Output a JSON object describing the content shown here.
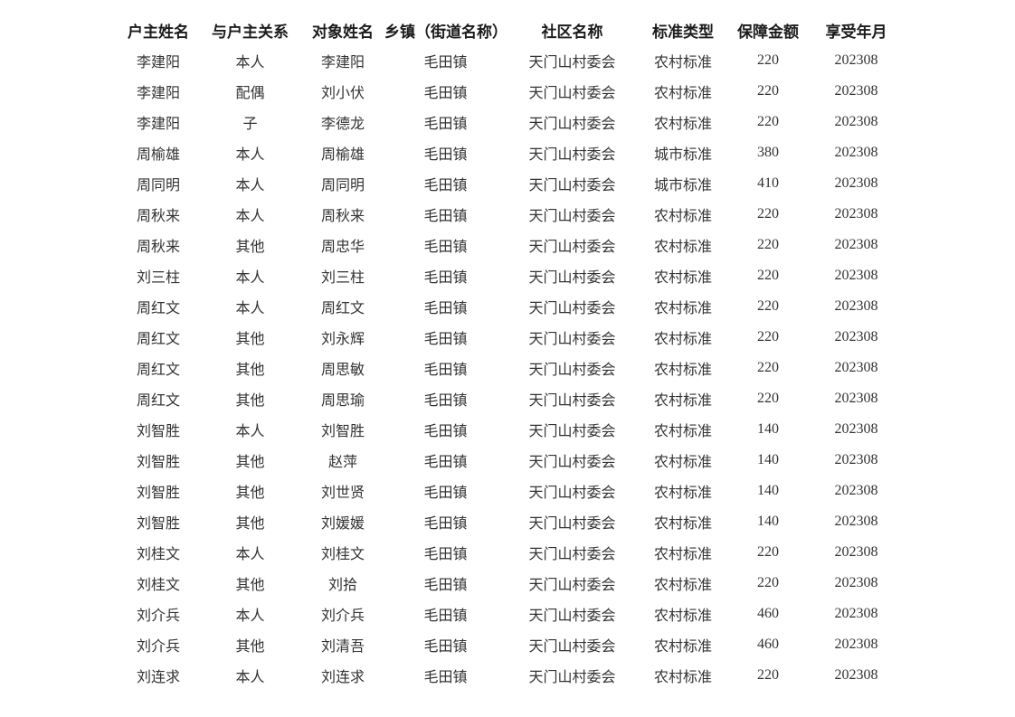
{
  "page": {
    "background_color": "#ffffff",
    "header_text_color": "#1c1c1c",
    "body_text_color": "#333333"
  },
  "table": {
    "headers": [
      "户主姓名",
      "与户主关系",
      "对象姓名",
      "乡镇（街道名称）",
      "社区名称",
      "标准类型",
      "保障金额",
      "享受年月"
    ],
    "rows": [
      [
        "李建阳",
        "本人",
        "李建阳",
        "毛田镇",
        "天门山村委会",
        "农村标准",
        "220",
        "202308"
      ],
      [
        "李建阳",
        "配偶",
        "刘小伏",
        "毛田镇",
        "天门山村委会",
        "农村标准",
        "220",
        "202308"
      ],
      [
        "李建阳",
        "子",
        "李德龙",
        "毛田镇",
        "天门山村委会",
        "农村标准",
        "220",
        "202308"
      ],
      [
        "周榆雄",
        "本人",
        "周榆雄",
        "毛田镇",
        "天门山村委会",
        "城市标准",
        "380",
        "202308"
      ],
      [
        "周同明",
        "本人",
        "周同明",
        "毛田镇",
        "天门山村委会",
        "城市标准",
        "410",
        "202308"
      ],
      [
        "周秋来",
        "本人",
        "周秋来",
        "毛田镇",
        "天门山村委会",
        "农村标准",
        "220",
        "202308"
      ],
      [
        "周秋来",
        "其他",
        "周忠华",
        "毛田镇",
        "天门山村委会",
        "农村标准",
        "220",
        "202308"
      ],
      [
        "刘三柱",
        "本人",
        "刘三柱",
        "毛田镇",
        "天门山村委会",
        "农村标准",
        "220",
        "202308"
      ],
      [
        "周红文",
        "本人",
        "周红文",
        "毛田镇",
        "天门山村委会",
        "农村标准",
        "220",
        "202308"
      ],
      [
        "周红文",
        "其他",
        "刘永辉",
        "毛田镇",
        "天门山村委会",
        "农村标准",
        "220",
        "202308"
      ],
      [
        "周红文",
        "其他",
        "周思敏",
        "毛田镇",
        "天门山村委会",
        "农村标准",
        "220",
        "202308"
      ],
      [
        "周红文",
        "其他",
        "周思瑜",
        "毛田镇",
        "天门山村委会",
        "农村标准",
        "220",
        "202308"
      ],
      [
        "刘智胜",
        "本人",
        "刘智胜",
        "毛田镇",
        "天门山村委会",
        "农村标准",
        "140",
        "202308"
      ],
      [
        "刘智胜",
        "其他",
        "赵萍",
        "毛田镇",
        "天门山村委会",
        "农村标准",
        "140",
        "202308"
      ],
      [
        "刘智胜",
        "其他",
        "刘世贤",
        "毛田镇",
        "天门山村委会",
        "农村标准",
        "140",
        "202308"
      ],
      [
        "刘智胜",
        "其他",
        "刘媛媛",
        "毛田镇",
        "天门山村委会",
        "农村标准",
        "140",
        "202308"
      ],
      [
        "刘桂文",
        "本人",
        "刘桂文",
        "毛田镇",
        "天门山村委会",
        "农村标准",
        "220",
        "202308"
      ],
      [
        "刘桂文",
        "其他",
        "刘拾",
        "毛田镇",
        "天门山村委会",
        "农村标准",
        "220",
        "202308"
      ],
      [
        "刘介兵",
        "本人",
        "刘介兵",
        "毛田镇",
        "天门山村委会",
        "农村标准",
        "460",
        "202308"
      ],
      [
        "刘介兵",
        "其他",
        "刘清吾",
        "毛田镇",
        "天门山村委会",
        "农村标准",
        "460",
        "202308"
      ],
      [
        "刘连求",
        "本人",
        "刘连求",
        "毛田镇",
        "天门山村委会",
        "农村标准",
        "220",
        "202308"
      ]
    ]
  }
}
